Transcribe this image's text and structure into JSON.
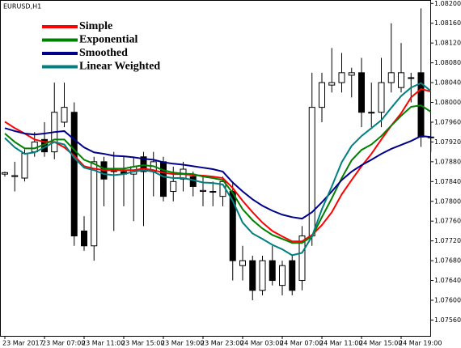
{
  "chart_data": {
    "type": "candlestick",
    "title": "EURUSD,H1",
    "categories": [
      "23 Mar 2017",
      null,
      null,
      null,
      "23 Mar 07:00",
      null,
      null,
      null,
      "23 Mar 11:00",
      null,
      null,
      null,
      "23 Mar 15:00",
      null,
      null,
      null,
      "23 Mar 19:00",
      null,
      null,
      null,
      "23 Mar 23:00",
      null,
      null,
      null,
      "24 Mar 03:00",
      null,
      null,
      null,
      "24 Mar 07:00",
      null,
      null,
      null,
      "24 Mar 11:00",
      null,
      null,
      null,
      "24 Mar 15:00",
      null,
      null,
      null,
      "24 Mar 19:00",
      null,
      null,
      null
    ],
    "open": [
      1.07855,
      1.0785,
      1.07847,
      1.079,
      1.07925,
      1.079,
      1.0796,
      1.0798,
      1.0774,
      1.0771,
      1.0788,
      1.07865,
      1.0786,
      1.07855,
      1.0789,
      1.0786,
      1.0788,
      1.0782,
      1.07845,
      1.0785,
      1.0782,
      1.0782,
      1.0781,
      1.0782,
      1.0767,
      1.0768,
      1.0762,
      1.0768,
      1.0763,
      1.0768,
      1.0764,
      1.0773,
      1.0799,
      1.08035,
      1.0804,
      1.08055,
      1.0806,
      1.0798,
      1.0798,
      1.0804,
      1.0803,
      1.0805,
      1.0806,
      1.0793
    ],
    "high": [
      1.0786,
      1.0788,
      1.07905,
      1.0794,
      1.0796,
      1.0804,
      1.0804,
      1.08,
      1.0777,
      1.0789,
      1.0789,
      1.079,
      1.0789,
      1.0789,
      1.079,
      1.079,
      1.0789,
      1.0787,
      1.0788,
      1.0786,
      1.0785,
      1.0784,
      1.0785,
      1.0784,
      1.0771,
      1.0769,
      1.0769,
      1.0771,
      1.0768,
      1.0769,
      1.0775,
      1.0806,
      1.0806,
      1.0811,
      1.081,
      1.0807,
      1.0809,
      1.0804,
      1.0809,
      1.0816,
      1.0812,
      1.0806,
      1.0819,
      1.0796
    ],
    "low": [
      1.0785,
      1.0782,
      1.0784,
      1.0789,
      1.0789,
      1.07885,
      1.0795,
      1.0771,
      1.077,
      1.0768,
      1.0779,
      1.0774,
      1.0779,
      1.0776,
      1.0775,
      1.0781,
      1.078,
      1.078,
      1.0782,
      1.0781,
      1.0779,
      1.0779,
      1.0779,
      1.0764,
      1.0764,
      1.076,
      1.0761,
      1.0763,
      1.0761,
      1.0761,
      1.0762,
      1.0771,
      1.0796,
      1.0802,
      1.0802,
      1.0801,
      1.0795,
      1.0795,
      1.0795,
      1.0802,
      1.0802,
      1.08,
      1.0791,
      1.079
    ],
    "close": [
      1.07858,
      1.07852,
      1.07897,
      1.0792,
      1.079,
      1.0798,
      1.0799,
      1.0773,
      1.0771,
      1.0788,
      1.07845,
      1.0786,
      1.07855,
      1.0787,
      1.0786,
      1.0788,
      1.0781,
      1.0784,
      1.07865,
      1.0783,
      1.07822,
      1.0782,
      1.0784,
      1.0768,
      1.0768,
      1.0762,
      1.0768,
      1.0764,
      1.0767,
      1.0762,
      1.0773,
      1.0799,
      1.0804,
      1.0804,
      1.0806,
      1.0806,
      1.0798,
      1.0798,
      1.0804,
      1.0806,
      1.0806,
      1.0805,
      1.0793,
      1.0793
    ],
    "series": [
      {
        "name": "Simple",
        "color": "#ff0000",
        "values": [
          1.07961,
          1.07948,
          1.07937,
          1.07925,
          1.0792,
          1.0792,
          1.07909,
          1.07892,
          1.07871,
          1.07866,
          1.07863,
          1.07863,
          1.07863,
          1.07863,
          1.07866,
          1.07863,
          1.07858,
          1.07855,
          1.07855,
          1.07853,
          1.07852,
          1.0785,
          1.07847,
          1.07827,
          1.07801,
          1.07778,
          1.07757,
          1.0774,
          1.07729,
          1.07719,
          1.07719,
          1.07732,
          1.07752,
          1.07778,
          1.07814,
          1.07843,
          1.07871,
          1.07896,
          1.07925,
          1.07953,
          1.07978,
          1.0801,
          1.08027,
          1.08022
        ]
      },
      {
        "name": "Exponential",
        "color": "#008000",
        "values": [
          1.07937,
          1.0792,
          1.07907,
          1.07907,
          1.07915,
          1.07925,
          1.07925,
          1.07904,
          1.07884,
          1.07876,
          1.07866,
          1.07866,
          1.07866,
          1.0787,
          1.07873,
          1.07871,
          1.07863,
          1.07858,
          1.07856,
          1.07855,
          1.0785,
          1.07847,
          1.07843,
          1.07817,
          1.07784,
          1.07762,
          1.07745,
          1.07732,
          1.07724,
          1.07716,
          1.07716,
          1.07729,
          1.07768,
          1.07806,
          1.07847,
          1.07883,
          1.07904,
          1.07915,
          1.07932,
          1.07953,
          1.07973,
          1.07991,
          1.07994,
          1.07981
        ]
      },
      {
        "name": "Smoothed",
        "color": "#00008b",
        "values": [
          1.07948,
          1.07942,
          1.07937,
          1.07935,
          1.07937,
          1.0794,
          1.07942,
          1.07925,
          1.07909,
          1.07899,
          1.07896,
          1.07892,
          1.07891,
          1.07889,
          1.07886,
          1.07884,
          1.07879,
          1.07876,
          1.07874,
          1.07871,
          1.07868,
          1.07865,
          1.0786,
          1.07838,
          1.0782,
          1.07804,
          1.07791,
          1.07781,
          1.07773,
          1.07768,
          1.07765,
          1.07778,
          1.07798,
          1.0782,
          1.07843,
          1.0786,
          1.07873,
          1.07884,
          1.07896,
          1.07906,
          1.07914,
          1.07922,
          1.07932,
          1.0793
        ]
      },
      {
        "name": "Linear Weighted",
        "color": "#008080",
        "values": [
          1.07928,
          1.07909,
          1.07896,
          1.07899,
          1.07909,
          1.0792,
          1.07915,
          1.07888,
          1.07868,
          1.07863,
          1.07855,
          1.07853,
          1.07855,
          1.0786,
          1.07863,
          1.0786,
          1.0785,
          1.07847,
          1.07847,
          1.07843,
          1.07838,
          1.07837,
          1.07834,
          1.07801,
          1.07757,
          1.07735,
          1.07724,
          1.07712,
          1.07703,
          1.07691,
          1.07696,
          1.07729,
          1.07784,
          1.0783,
          1.07879,
          1.07912,
          1.07932,
          1.07948,
          1.07964,
          1.07989,
          1.08013,
          1.0803,
          1.08039,
          1.08023
        ]
      }
    ],
    "ylim": [
      1.07528,
      1.08207
    ],
    "yticks": [
      {
        "value": 1.0756,
        "label": "1.07560"
      },
      {
        "value": 1.076,
        "label": "1.07600"
      },
      {
        "value": 1.0764,
        "label": "1.07640"
      },
      {
        "value": 1.0768,
        "label": "1.07680"
      },
      {
        "value": 1.0772,
        "label": "1.07720"
      },
      {
        "value": 1.0776,
        "label": "1.07760"
      },
      {
        "value": 1.078,
        "label": "1.07800"
      },
      {
        "value": 1.0784,
        "label": "1.07840"
      },
      {
        "value": 1.0788,
        "label": "1.07880"
      },
      {
        "value": 1.0792,
        "label": "1.07920"
      },
      {
        "value": 1.0796,
        "label": "1.07960"
      },
      {
        "value": 1.08,
        "label": "1.08000"
      },
      {
        "value": 1.0804,
        "label": "1.08040"
      },
      {
        "value": 1.0808,
        "label": "1.08080"
      },
      {
        "value": 1.0812,
        "label": "1.08120"
      },
      {
        "value": 1.0816,
        "label": "1.08160"
      },
      {
        "value": 1.082,
        "label": "1.08200"
      }
    ],
    "legend": "top-left",
    "grid": false
  }
}
